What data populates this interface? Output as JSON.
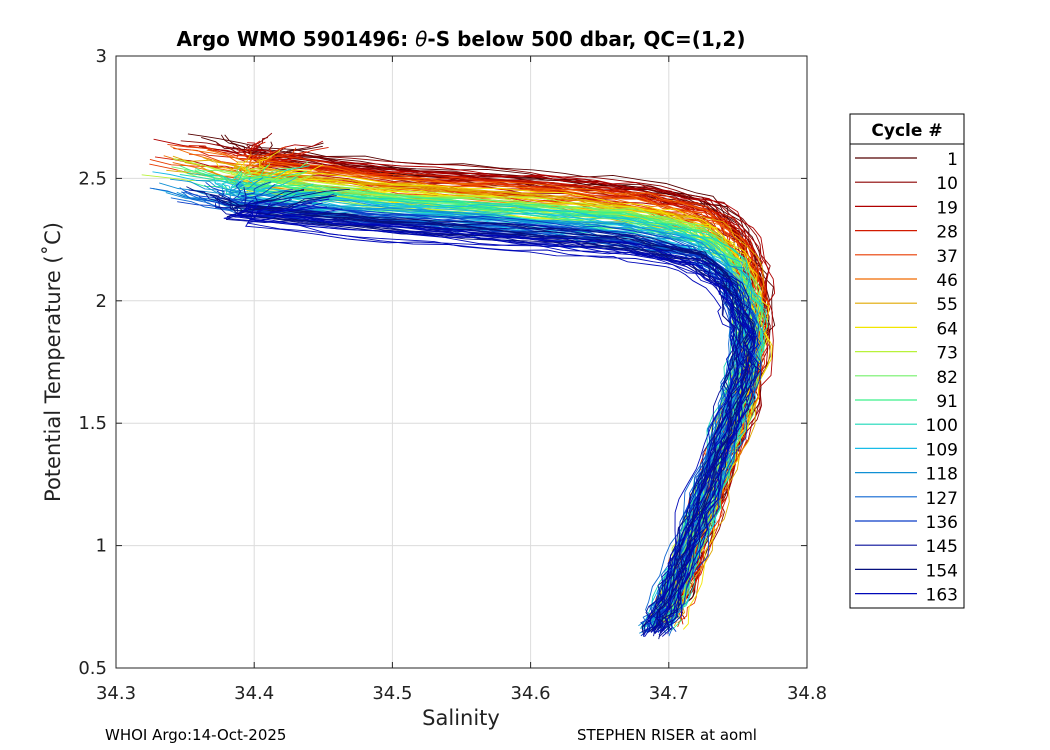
{
  "chart_data": {
    "type": "line",
    "title_prefix": "Argo WMO 5901496: ",
    "title_theta": "θ",
    "title_suffix": "-S below 500 dbar,  QC=(1,2)",
    "xlabel": "Salinity",
    "ylabel": "Potential Temperature (˚C)",
    "xlim": [
      34.3,
      34.8
    ],
    "ylim": [
      0.5,
      3.0
    ],
    "xticks": [
      "34.3",
      "34.4",
      "34.5",
      "34.6",
      "34.7",
      "34.8"
    ],
    "yticks": [
      "0.5",
      "1",
      "1.5",
      "2",
      "2.5",
      "3"
    ],
    "grid": true,
    "legend": {
      "title": "Cycle #",
      "position": "right",
      "entries": [
        "1",
        "10",
        "19",
        "28",
        "37",
        "46",
        "55",
        "64",
        "73",
        "82",
        "91",
        "100",
        "109",
        "118",
        "127",
        "136",
        "145",
        "154",
        "163"
      ],
      "colors": [
        "#550000",
        "#8b0000",
        "#b00000",
        "#d21a00",
        "#e83b00",
        "#f06a00",
        "#e0a800",
        "#f2e600",
        "#b8f23a",
        "#74f06a",
        "#3cf08a",
        "#1cd8b8",
        "#18bce8",
        "#1090d4",
        "#0f66d2",
        "#0a3cc8",
        "#060f9a",
        "#06107e",
        "#0008b8"
      ]
    },
    "series_profile": [
      [
        34.33,
        2.56
      ],
      [
        34.4,
        2.5
      ],
      [
        34.5,
        2.44
      ],
      [
        34.6,
        2.4
      ],
      [
        34.68,
        2.36
      ],
      [
        34.73,
        2.3
      ],
      [
        34.755,
        2.18
      ],
      [
        34.765,
        2.0
      ],
      [
        34.765,
        1.8
      ],
      [
        34.755,
        1.55
      ],
      [
        34.74,
        1.3
      ],
      [
        34.725,
        1.05
      ],
      [
        34.71,
        0.8
      ],
      [
        34.7,
        0.68
      ]
    ]
  },
  "footer": {
    "left": "WHOI Argo:14-Oct-2025",
    "right": "STEPHEN RISER at aoml"
  }
}
